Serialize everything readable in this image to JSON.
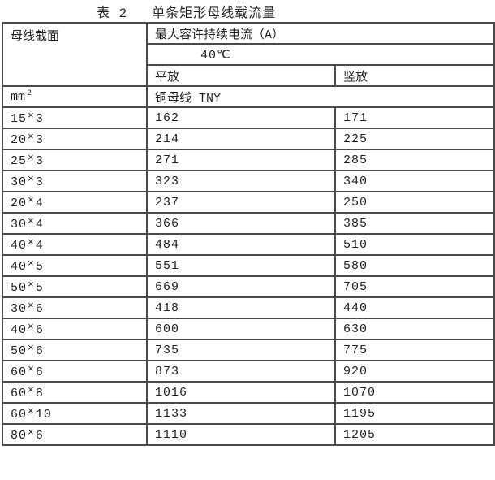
{
  "page_title": {
    "label": "表 2",
    "text": "单条矩形母线载流量"
  },
  "table": {
    "multiply_sign": "×",
    "header": {
      "section": "母线截面",
      "max_current": "最大容许持续电流（A）",
      "temperature": "40℃",
      "flat": "平放",
      "vertical": "竖放",
      "unit_base": "mm",
      "unit_exponent": "2",
      "material": "铜母线 TNY"
    },
    "rows": [
      {
        "width": "15",
        "thickness": "3",
        "flat": "162",
        "vertical": "171"
      },
      {
        "width": "20",
        "thickness": "3",
        "flat": "214",
        "vertical": "225"
      },
      {
        "width": "25",
        "thickness": "3",
        "flat": "271",
        "vertical": "285"
      },
      {
        "width": "30",
        "thickness": "3",
        "flat": "323",
        "vertical": "340"
      },
      {
        "width": "20",
        "thickness": "4",
        "flat": "237",
        "vertical": "250"
      },
      {
        "width": "30",
        "thickness": "4",
        "flat": "366",
        "vertical": "385"
      },
      {
        "width": "40",
        "thickness": "4",
        "flat": "484",
        "vertical": "510"
      },
      {
        "width": "40",
        "thickness": "5",
        "flat": "551",
        "vertical": "580"
      },
      {
        "width": "50",
        "thickness": "5",
        "flat": "669",
        "vertical": "705"
      },
      {
        "width": "30",
        "thickness": "6",
        "flat": "418",
        "vertical": "440"
      },
      {
        "width": "40",
        "thickness": "6",
        "flat": "600",
        "vertical": "630"
      },
      {
        "width": "50",
        "thickness": "6",
        "flat": "735",
        "vertical": "775"
      },
      {
        "width": "60",
        "thickness": "6",
        "flat": "873",
        "vertical": "920"
      },
      {
        "width": "60",
        "thickness": "8",
        "flat": "1016",
        "vertical": "1070"
      },
      {
        "width": "60",
        "thickness": "10",
        "flat": "1133",
        "vertical": "1195"
      },
      {
        "width": "80",
        "thickness": "6",
        "flat": "1110",
        "vertical": "1205"
      }
    ]
  },
  "colors": {
    "border": "#4a4a4a",
    "text": "#1f1f1f",
    "background": "#ffffff"
  }
}
